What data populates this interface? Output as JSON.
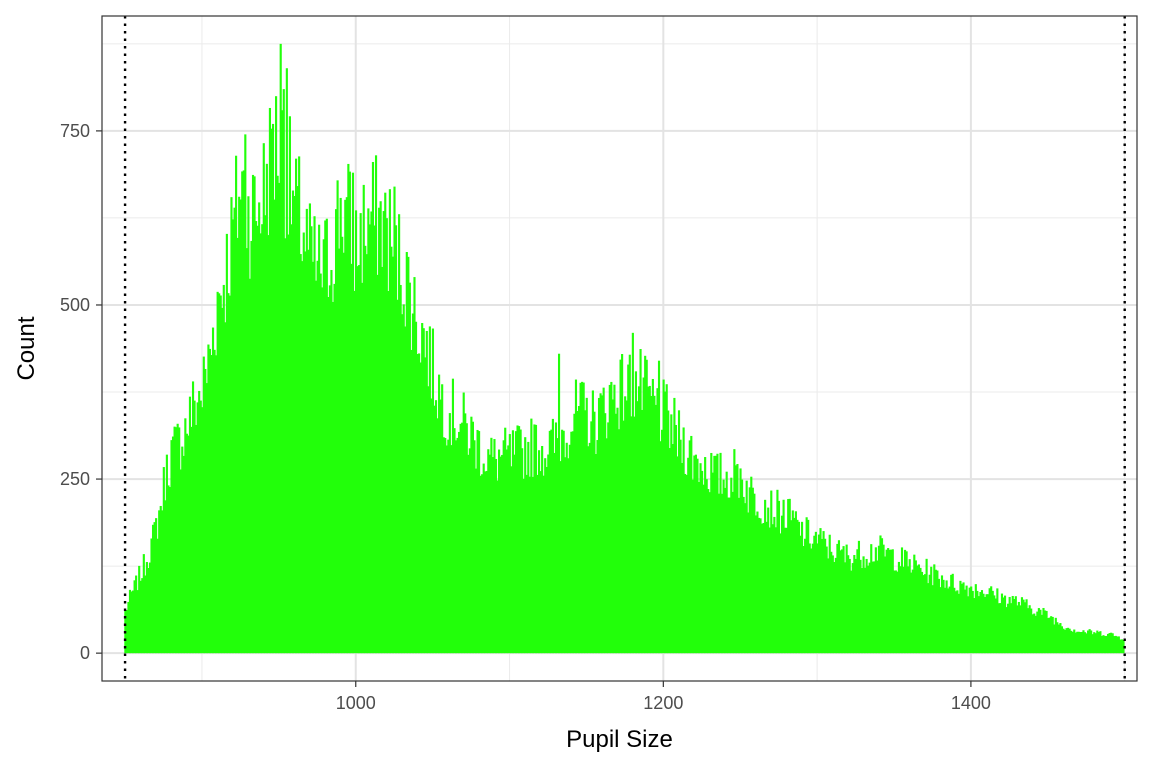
{
  "chart_data": {
    "type": "bar",
    "xlabel": "Pupil Size",
    "ylabel": "Count",
    "xlim": [
      835,
      1508
    ],
    "ylim": [
      -40,
      915
    ],
    "x_ticks": [
      1000,
      1200,
      1400
    ],
    "y_ticks": [
      0,
      250,
      500,
      750
    ],
    "grid": true,
    "bin_width": 1,
    "bar_color": "#22FF0A",
    "reference_lines": [
      {
        "x": 850,
        "style": "dotted"
      },
      {
        "x": 1500,
        "style": "dotted"
      }
    ],
    "profile": [
      [
        850,
        60
      ],
      [
        853,
        80
      ],
      [
        858,
        105
      ],
      [
        863,
        130
      ],
      [
        868,
        165
      ],
      [
        872,
        200
      ],
      [
        876,
        255
      ],
      [
        880,
        290
      ],
      [
        885,
        305
      ],
      [
        890,
        330
      ],
      [
        895,
        360
      ],
      [
        900,
        380
      ],
      [
        905,
        430
      ],
      [
        910,
        510
      ],
      [
        915,
        550
      ],
      [
        920,
        610
      ],
      [
        925,
        680
      ],
      [
        930,
        640
      ],
      [
        935,
        640
      ],
      [
        940,
        670
      ],
      [
        945,
        720
      ],
      [
        950,
        745
      ],
      [
        955,
        700
      ],
      [
        960,
        645
      ],
      [
        965,
        620
      ],
      [
        970,
        575
      ],
      [
        975,
        555
      ],
      [
        980,
        560
      ],
      [
        985,
        590
      ],
      [
        990,
        650
      ],
      [
        995,
        630
      ],
      [
        1000,
        585
      ],
      [
        1005,
        615
      ],
      [
        1010,
        630
      ],
      [
        1015,
        630
      ],
      [
        1020,
        615
      ],
      [
        1025,
        580
      ],
      [
        1030,
        560
      ],
      [
        1035,
        525
      ],
      [
        1040,
        480
      ],
      [
        1045,
        455
      ],
      [
        1050,
        410
      ],
      [
        1055,
        375
      ],
      [
        1060,
        350
      ],
      [
        1065,
        345
      ],
      [
        1070,
        330
      ],
      [
        1075,
        315
      ],
      [
        1080,
        300
      ],
      [
        1085,
        285
      ],
      [
        1090,
        280
      ],
      [
        1095,
        285
      ],
      [
        1100,
        285
      ],
      [
        1105,
        290
      ],
      [
        1110,
        295
      ],
      [
        1115,
        300
      ],
      [
        1120,
        300
      ],
      [
        1125,
        295
      ],
      [
        1130,
        305
      ],
      [
        1135,
        320
      ],
      [
        1140,
        340
      ],
      [
        1145,
        350
      ],
      [
        1150,
        345
      ],
      [
        1155,
        335
      ],
      [
        1160,
        350
      ],
      [
        1165,
        370
      ],
      [
        1170,
        380
      ],
      [
        1175,
        385
      ],
      [
        1180,
        390
      ],
      [
        1185,
        385
      ],
      [
        1190,
        370
      ],
      [
        1195,
        355
      ],
      [
        1200,
        345
      ],
      [
        1205,
        330
      ],
      [
        1210,
        310
      ],
      [
        1215,
        300
      ],
      [
        1220,
        280
      ],
      [
        1225,
        275
      ],
      [
        1230,
        265
      ],
      [
        1235,
        255
      ],
      [
        1240,
        255
      ],
      [
        1245,
        260
      ],
      [
        1250,
        260
      ],
      [
        1255,
        235
      ],
      [
        1260,
        225
      ],
      [
        1265,
        220
      ],
      [
        1270,
        210
      ],
      [
        1275,
        205
      ],
      [
        1280,
        200
      ],
      [
        1285,
        190
      ],
      [
        1290,
        175
      ],
      [
        1295,
        170
      ],
      [
        1300,
        165
      ],
      [
        1310,
        150
      ],
      [
        1320,
        140
      ],
      [
        1330,
        145
      ],
      [
        1340,
        150
      ],
      [
        1350,
        140
      ],
      [
        1360,
        130
      ],
      [
        1370,
        120
      ],
      [
        1380,
        110
      ],
      [
        1390,
        100
      ],
      [
        1400,
        95
      ],
      [
        1410,
        90
      ],
      [
        1420,
        80
      ],
      [
        1430,
        75
      ],
      [
        1440,
        65
      ],
      [
        1450,
        55
      ],
      [
        1460,
        40
      ],
      [
        1470,
        32
      ],
      [
        1480,
        30
      ],
      [
        1490,
        28
      ],
      [
        1498,
        22
      ]
    ],
    "spikes": [
      [
        951,
        875
      ],
      [
        953,
        810
      ],
      [
        946,
        760
      ],
      [
        928,
        745
      ],
      [
        955,
        840
      ],
      [
        998,
        690
      ],
      [
        1025,
        670
      ],
      [
        1132,
        430
      ],
      [
        1180,
        460
      ],
      [
        1197,
        420
      ]
    ]
  }
}
